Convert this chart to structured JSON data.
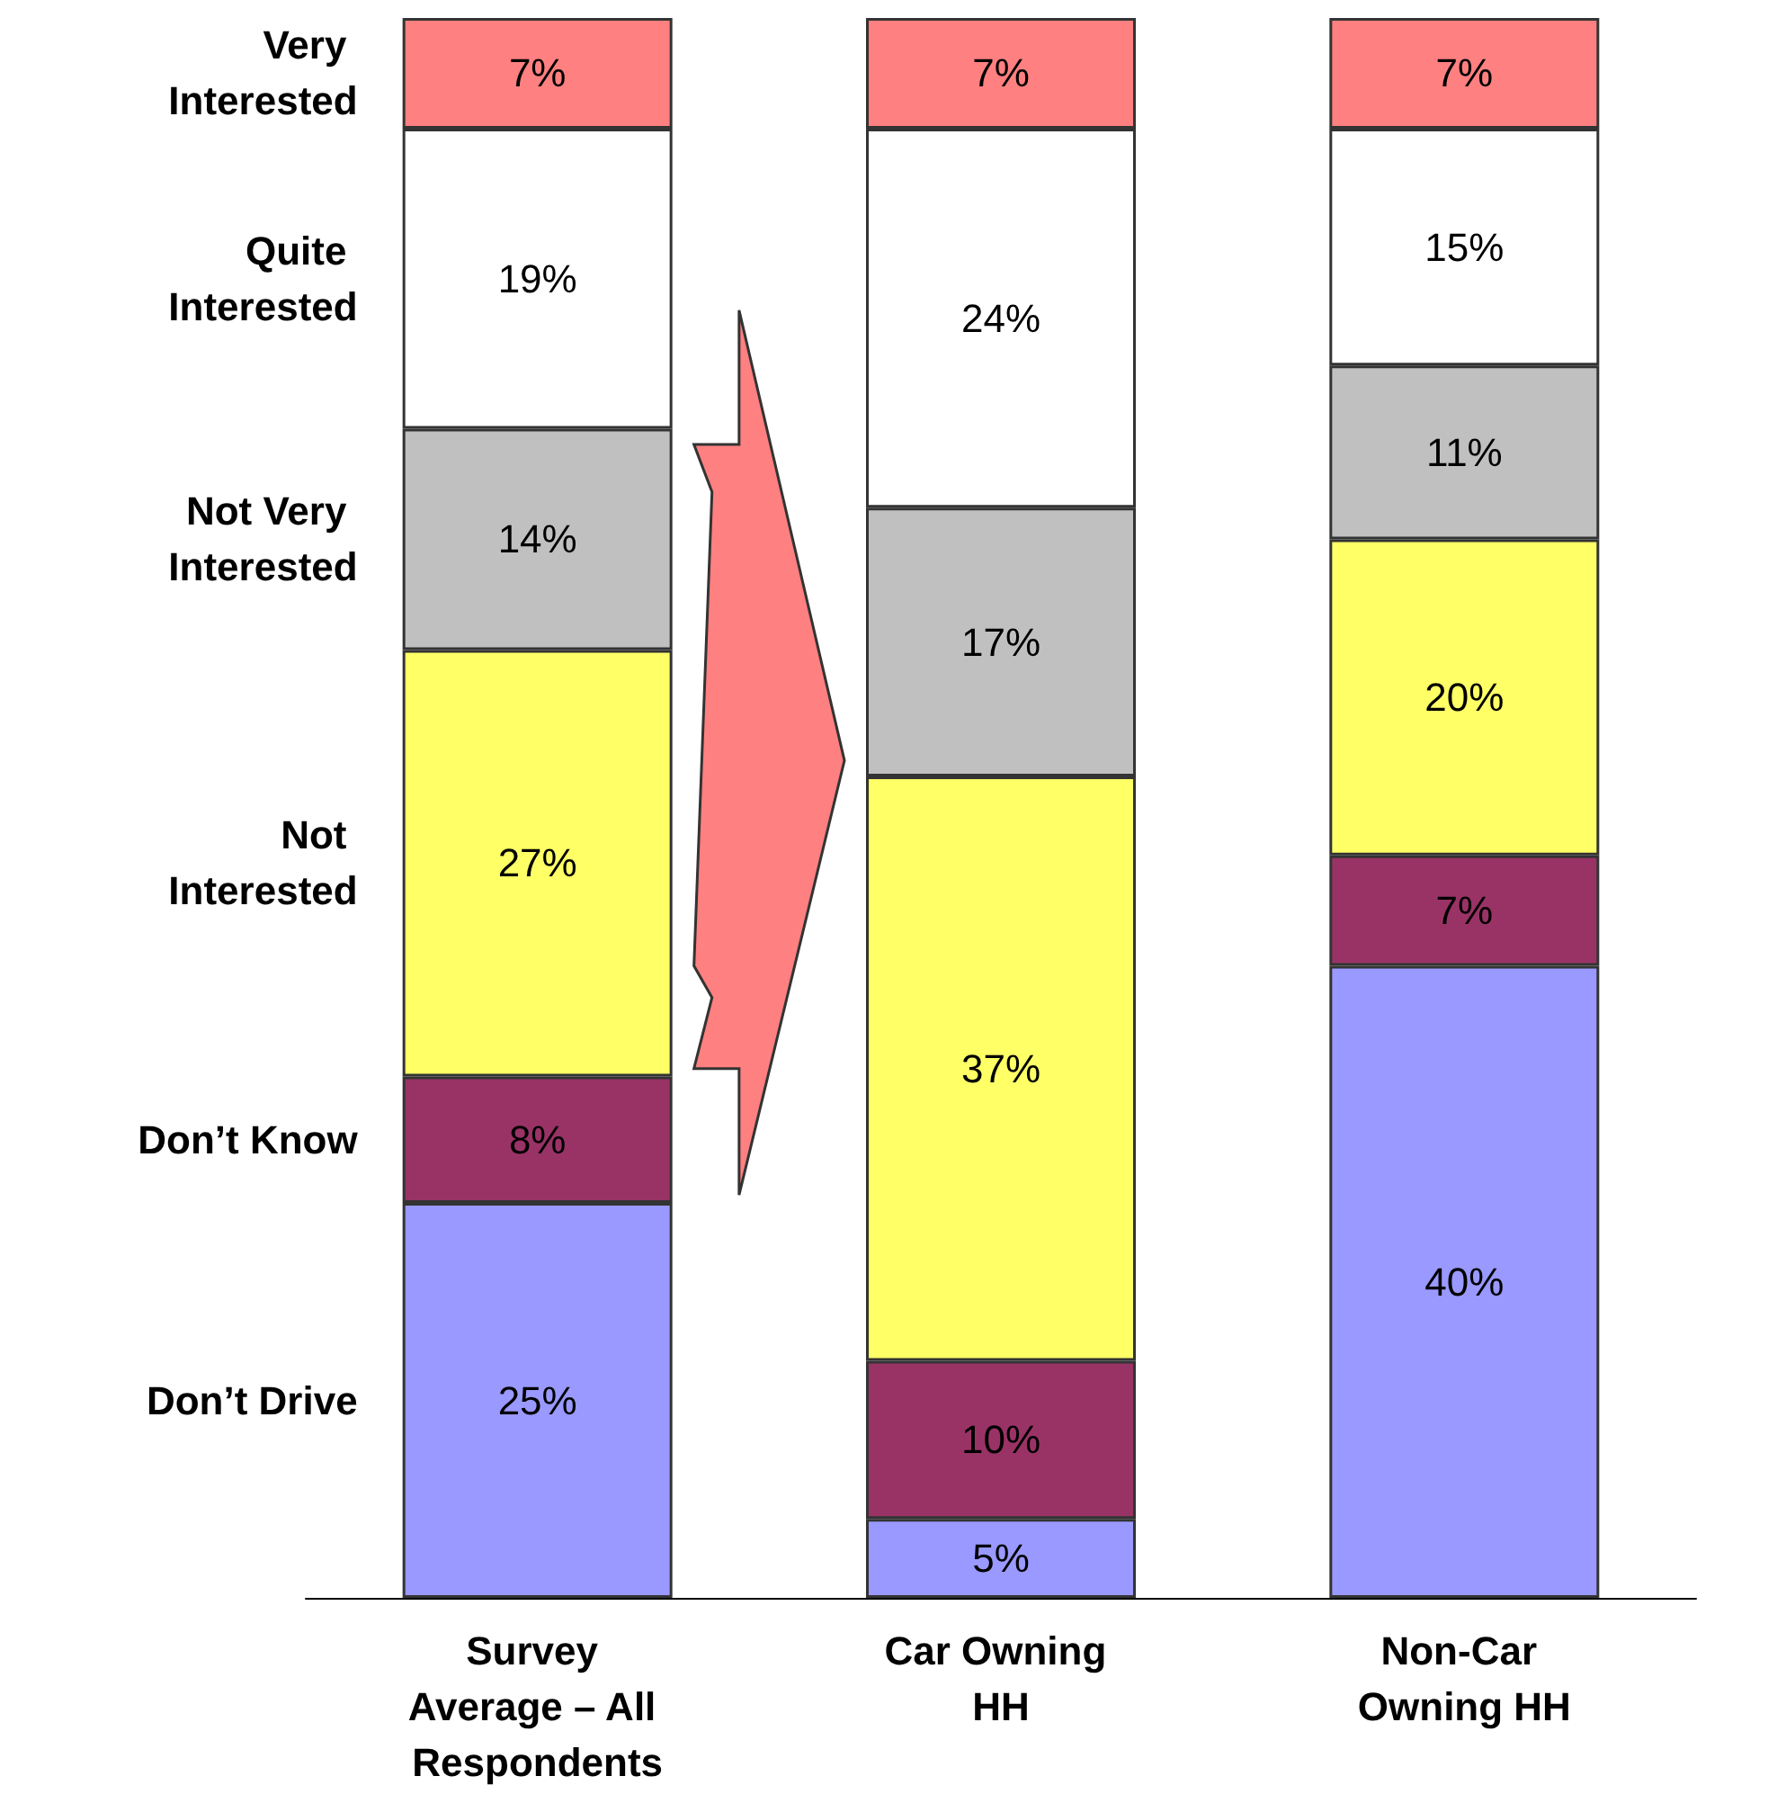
{
  "chart_data": {
    "type": "bar",
    "stacked": true,
    "ylim": [
      0,
      100
    ],
    "legend": false,
    "grid": false,
    "categories": [
      "Survey Average – All Respondents",
      "Car Owning HH",
      "Non-Car Owning HH"
    ],
    "series": [
      {
        "name": "Don’t Drive",
        "color": "#9999ff",
        "values": [
          25,
          5,
          40
        ],
        "value_labels": [
          "25%",
          "5%",
          "40%"
        ]
      },
      {
        "name": "Don’t Know",
        "color": "#993366",
        "values": [
          8,
          10,
          7
        ],
        "value_labels": [
          "8%",
          "10%",
          "7%"
        ]
      },
      {
        "name": "Not Interested",
        "color": "#ffff66",
        "values": [
          27,
          37,
          20
        ],
        "value_labels": [
          "27%",
          "37%",
          "20%"
        ]
      },
      {
        "name": "Not Very Interested",
        "color": "#c0c0c0",
        "values": [
          14,
          17,
          11
        ],
        "value_labels": [
          "14%",
          "17%",
          "11%"
        ]
      },
      {
        "name": "Quite Interested",
        "color": "#ffffff",
        "values": [
          19,
          24,
          15
        ],
        "value_labels": [
          "19%",
          "24%",
          "15%"
        ]
      },
      {
        "name": "Very Interested",
        "color": "#ff8080",
        "values": [
          7,
          7,
          7
        ],
        "value_labels": [
          "7%",
          "7%",
          "7%"
        ]
      }
    ]
  }
}
